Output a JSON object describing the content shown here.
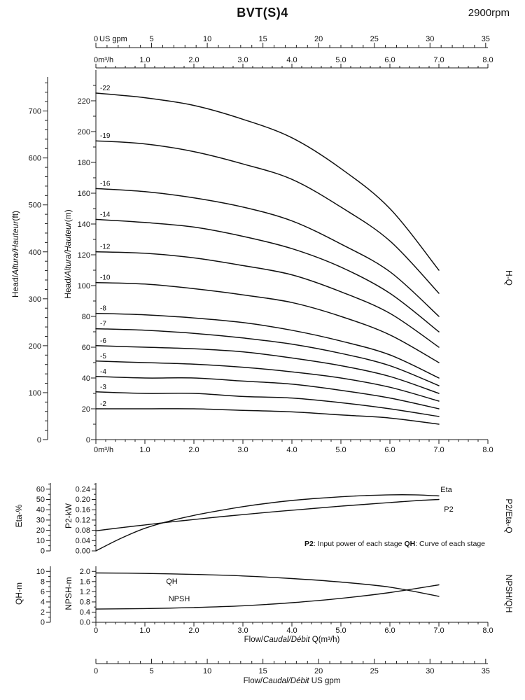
{
  "title": "BVT(S)4",
  "rpm": "2900rpm",
  "labels": {
    "head_ft": {
      "pre": "Head/",
      "italic": "Altura/Hauteur",
      "post": "(ft)"
    },
    "head_m": {
      "pre": "Head/",
      "italic": "Altura/Hauteur",
      "post": "(m)"
    },
    "hq": "H-Q",
    "eta_axis": "Eta-%",
    "p2_axis": "P2-kW",
    "p2_eta_q": "P2/Eta-Q",
    "qh_axis": "QH-m",
    "npsh_axis": "NPSH-m",
    "npsh_qh": "NPSH/QH",
    "flow_m3h": {
      "pre": "Flow/",
      "italic": "Caudal/Débit",
      "post": " Q(m³/h)"
    },
    "flow_gpm": {
      "pre": "Flow/",
      "italic": "Caudal/Débit",
      "post": "  US gpm"
    }
  },
  "note": {
    "p2_bold": "P2",
    "p2_text": ": Input power of each stage ",
    "qh_bold": "QH",
    "qh_text": ": Curve of each stage"
  },
  "axes": {
    "gpm_unit": "US gpm",
    "gpm_ticks": [
      "0",
      "5",
      "10",
      "15",
      "20",
      "25",
      "30",
      "35"
    ],
    "m3h_top_ticks": [
      "0m³/h",
      "1.0",
      "2.0",
      "3.0",
      "4.0",
      "5.0",
      "6.0",
      "7.0",
      "8.0"
    ],
    "m3h_main_ticks": [
      "0m³/h",
      "1.0",
      "2.0",
      "3.0",
      "4.0",
      "5.0",
      "6.0",
      "7.0",
      "8.0"
    ],
    "m3h_bottom_ticks": [
      "0",
      "1.0",
      "2.0",
      "3.0",
      "4.0",
      "5.0",
      "6.0",
      "7.0",
      "8.0"
    ],
    "m_ticks": [
      "0",
      "20",
      "40",
      "60",
      "80",
      "100",
      "120",
      "140",
      "160",
      "180",
      "200",
      "220"
    ],
    "ft_ticks": [
      "0",
      "100",
      "200",
      "300",
      "400",
      "500",
      "600",
      "700"
    ],
    "eta_ticks": [
      "0",
      "10",
      "20",
      "30",
      "40",
      "50",
      "60"
    ],
    "p2_ticks": [
      "0.00",
      "0.04",
      "0.08",
      "0.12",
      "0.16",
      "0.20",
      "0.24"
    ],
    "qh_ticks": [
      "0",
      "2",
      "4",
      "6",
      "8",
      "10"
    ],
    "npsh_ticks": [
      "0.0",
      "0.4",
      "0.8",
      "1.2",
      "1.6",
      "2.0"
    ]
  },
  "chart_data": [
    {
      "type": "line",
      "name": "H-Q",
      "xlabel": "Flow Q (m³/h)",
      "ylabel_m": "Head (m)",
      "ylabel_ft": "Head (ft)",
      "x": [
        0,
        1,
        2,
        3,
        4,
        5,
        6,
        7
      ],
      "xlim": [
        0,
        8
      ],
      "xlim_gpm": [
        0,
        35.2
      ],
      "ylim_m": [
        0,
        240
      ],
      "ylim_ft": [
        0,
        787
      ],
      "series": [
        {
          "name": "-22",
          "values": [
            225,
            222,
            217,
            208,
            196,
            176,
            150,
            110
          ]
        },
        {
          "name": "-19",
          "values": [
            194,
            192,
            187,
            179,
            169,
            151,
            129,
            95
          ]
        },
        {
          "name": "-16",
          "values": [
            163,
            161,
            157,
            151,
            142,
            127,
            109,
            80
          ]
        },
        {
          "name": "-14",
          "values": [
            143,
            141,
            138,
            132,
            124,
            112,
            95,
            70
          ]
        },
        {
          "name": "-12",
          "values": [
            122,
            121,
            118,
            113,
            107,
            96,
            82,
            60
          ]
        },
        {
          "name": "-10",
          "values": [
            102,
            101,
            98,
            94,
            89,
            80,
            68,
            50
          ]
        },
        {
          "name": "-8",
          "values": [
            82,
            81,
            79,
            76,
            71,
            64,
            55,
            40
          ]
        },
        {
          "name": "-7",
          "values": [
            72,
            71,
            69,
            66,
            62,
            56,
            48,
            35
          ]
        },
        {
          "name": "-6",
          "values": [
            61,
            60,
            59,
            57,
            53,
            48,
            41,
            30
          ]
        },
        {
          "name": "-5",
          "values": [
            51,
            50,
            49,
            47,
            44,
            40,
            34,
            25
          ]
        },
        {
          "name": "-4",
          "values": [
            41,
            40,
            40,
            38,
            36,
            32,
            27,
            20
          ]
        },
        {
          "name": "-3",
          "values": [
            31,
            30,
            30,
            28,
            27,
            24,
            20,
            15
          ]
        },
        {
          "name": "-2",
          "values": [
            20,
            20,
            20,
            19,
            18,
            16,
            14,
            10
          ]
        }
      ]
    },
    {
      "type": "line",
      "name": "P2/Eta-Q",
      "x": [
        0,
        0.5,
        1,
        1.5,
        2,
        2.5,
        3,
        3.5,
        4,
        4.5,
        5,
        5.5,
        6,
        6.5,
        7
      ],
      "xlim": [
        0,
        8
      ],
      "eta_ylim": [
        0,
        66
      ],
      "p2_ylim": [
        0,
        0.264
      ],
      "series": [
        {
          "name": "Eta",
          "axis": "eta",
          "values": [
            0,
            12,
            22,
            29,
            34.5,
            39,
            43,
            46.3,
            49,
            51,
            52.6,
            53.8,
            54.5,
            54.5,
            53.5
          ]
        },
        {
          "name": "P2",
          "axis": "p2",
          "values": [
            0.078,
            0.09,
            0.101,
            0.112,
            0.122,
            0.132,
            0.141,
            0.15,
            0.158,
            0.166,
            0.174,
            0.181,
            0.188,
            0.195,
            0.2
          ]
        }
      ]
    },
    {
      "type": "line",
      "name": "NPSH/QH",
      "x": [
        0,
        1,
        2,
        3,
        4,
        5,
        6,
        7
      ],
      "xlim": [
        0,
        8
      ],
      "qh_ylim": [
        0,
        11
      ],
      "npsh_ylim": [
        0,
        2.2
      ],
      "series": [
        {
          "name": "QH",
          "axis": "qh",
          "values": [
            9.7,
            9.6,
            9.4,
            9.1,
            8.6,
            7.9,
            6.9,
            5.1
          ]
        },
        {
          "name": "NPSH",
          "axis": "npsh",
          "values": [
            0.52,
            0.54,
            0.58,
            0.65,
            0.77,
            0.94,
            1.17,
            1.47
          ]
        }
      ]
    }
  ]
}
